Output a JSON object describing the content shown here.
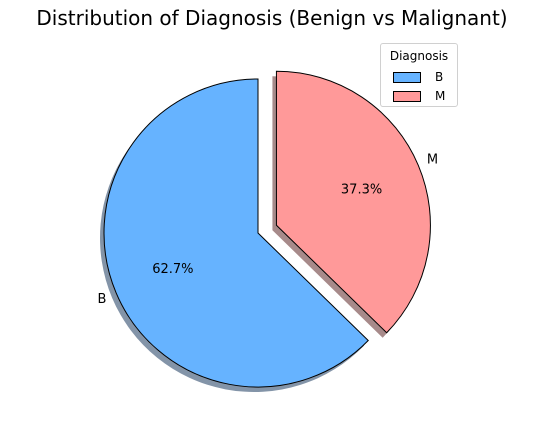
{
  "chart_data": {
    "type": "pie",
    "title": "Distribution of Diagnosis (Benign vs Malignant)",
    "categories": [
      "B",
      "M"
    ],
    "values": [
      62.7,
      37.3
    ],
    "slice_labels": [
      "62.7%",
      "37.3%"
    ],
    "colors": [
      "#66b3ff",
      "#ff9999"
    ],
    "exploded": [
      false,
      true
    ],
    "shadow": true,
    "start_angle_deg": 90,
    "legend": {
      "title": "Diagnosis",
      "placement": "top-right",
      "entries": [
        "B",
        "M"
      ]
    }
  }
}
